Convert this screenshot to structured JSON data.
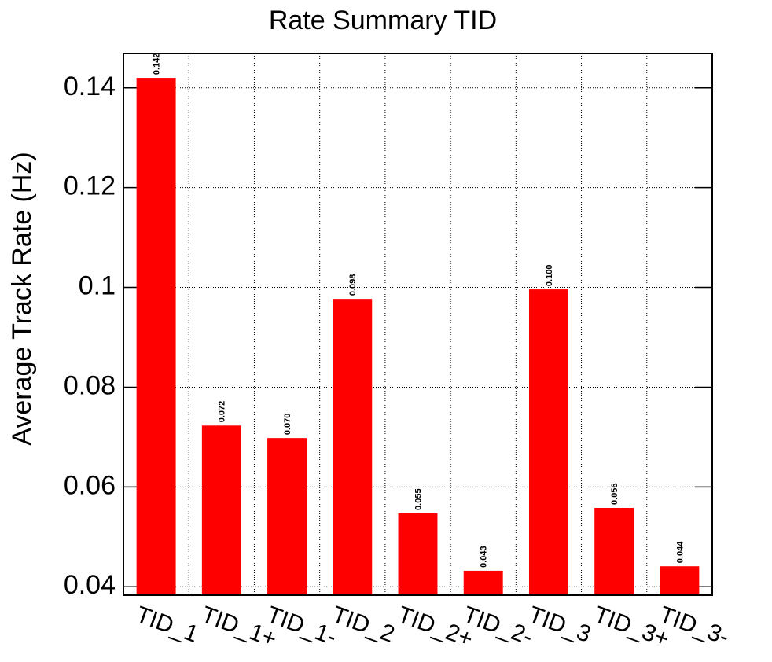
{
  "chart_data": {
    "type": "bar",
    "title": "Rate Summary TID",
    "y_label": "Average Track Rate (Hz)",
    "categories": [
      "TID_1",
      "TID_1+",
      "TID_1-",
      "TID_2",
      "TID_2+",
      "TID_2-",
      "TID_3",
      "TID_3+",
      "TID_3-"
    ],
    "values": [
      0.142,
      0.0723,
      0.0698,
      0.0977,
      0.0547,
      0.0432,
      0.0996,
      0.0558,
      0.0441
    ],
    "value_labels": [
      "0.142",
      "0.072",
      "0.070",
      "0.098",
      "0.055",
      "0.043",
      "0.100",
      "0.056",
      "0.044"
    ],
    "color": "#ff0000",
    "ylim": [
      0.0383,
      0.1469
    ],
    "yticks": [
      0.04,
      0.06,
      0.08,
      0.1,
      0.12,
      0.14
    ],
    "grid": true
  }
}
